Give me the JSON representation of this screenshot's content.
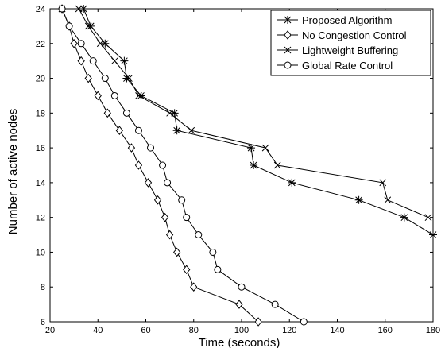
{
  "chart_data": {
    "type": "line",
    "xlabel": "Time (seconds)",
    "ylabel": "Number of active nodes",
    "xlim": [
      20,
      180
    ],
    "ylim": [
      6,
      24
    ],
    "xticks": [
      20,
      40,
      60,
      80,
      100,
      120,
      140,
      160,
      180
    ],
    "yticks": [
      6,
      8,
      10,
      12,
      14,
      16,
      18,
      20,
      22,
      24
    ],
    "grid": false,
    "legend_position": "top-right",
    "series": [
      {
        "name": "Proposed Algorithm",
        "marker": "asterisk",
        "x": [
          25,
          34,
          37,
          43,
          51,
          52,
          58,
          72,
          73,
          104,
          105,
          121,
          149,
          168,
          180
        ],
        "y": [
          24,
          24,
          23,
          22,
          21,
          20,
          19,
          18,
          17,
          16,
          15,
          14,
          13,
          12,
          11
        ]
      },
      {
        "name": "No Congestion Control",
        "marker": "diamond",
        "x": [
          25,
          28,
          30,
          33,
          36,
          40,
          44,
          49,
          54,
          57,
          61,
          65,
          68,
          70,
          73,
          77,
          80,
          99,
          107
        ],
        "y": [
          24,
          23,
          22,
          21,
          20,
          19,
          18,
          17,
          16,
          15,
          14,
          13,
          12,
          11,
          10,
          9,
          8,
          7,
          6
        ]
      },
      {
        "name": "Lightweight Buffering",
        "marker": "x",
        "x": [
          25,
          32,
          36,
          41,
          47,
          53,
          57,
          70,
          79,
          110,
          115,
          159,
          161,
          178
        ],
        "y": [
          24,
          24,
          23,
          22,
          21,
          20,
          19,
          18,
          17,
          16,
          15,
          14,
          13,
          12
        ]
      },
      {
        "name": "Global Rate Control",
        "marker": "circle",
        "x": [
          25,
          28,
          33,
          38,
          43,
          47,
          52,
          57,
          62,
          67,
          69,
          75,
          77,
          82,
          88,
          90,
          100,
          114,
          126
        ],
        "y": [
          24,
          23,
          22,
          21,
          20,
          19,
          18,
          17,
          16,
          15,
          14,
          13,
          12,
          11,
          10,
          9,
          8,
          7,
          6
        ]
      }
    ]
  }
}
